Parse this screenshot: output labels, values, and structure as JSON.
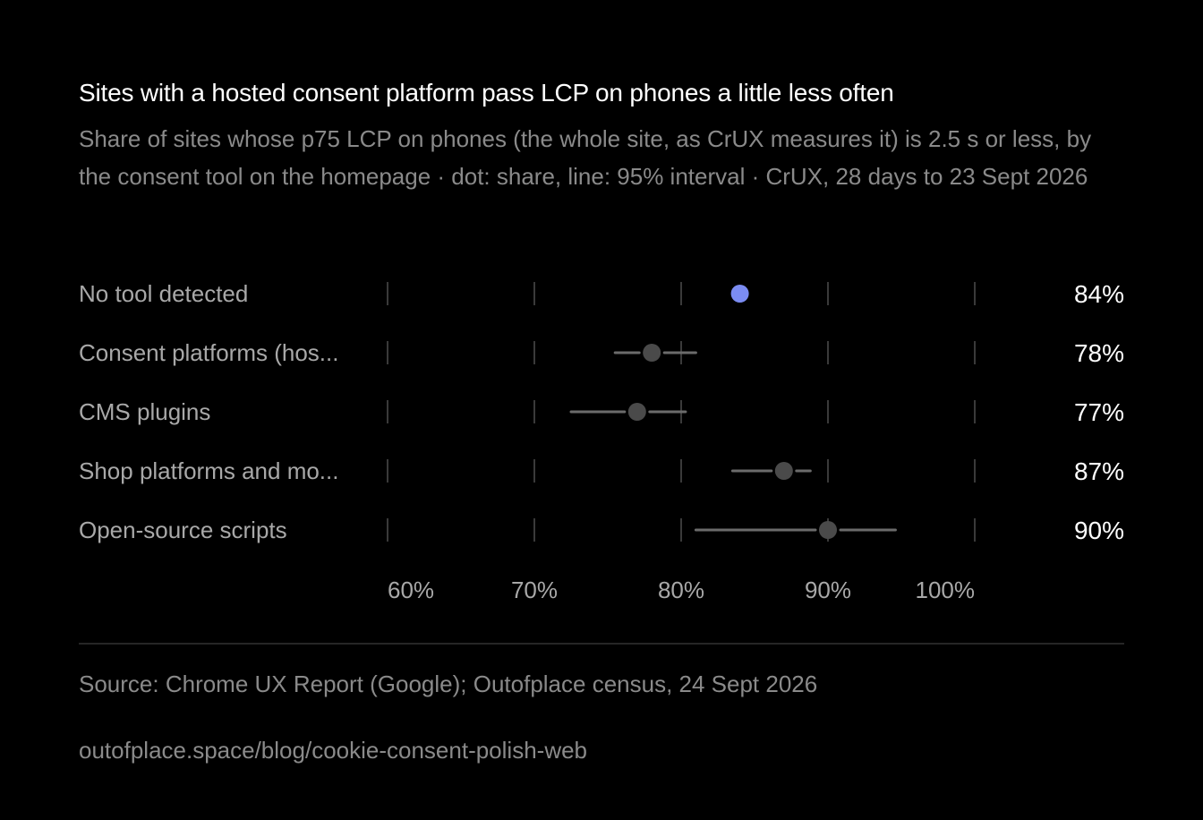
{
  "title": "Sites with a hosted consent platform pass LCP on phones a little less often",
  "subtitle": "Share of sites whose p75 LCP on phones (the whole site, as CrUX measures it) is 2.5 s or less, by the consent tool on the homepage · dot: share, line: 95% interval · CrUX, 28 days to 23 Sept 2026",
  "source": "Source: Chrome UX Report (Google); Outofplace census, 24 Sept 2026",
  "url": "outofplace.space/blog/cookie-consent-polish-web",
  "colors": {
    "background": "#000000",
    "highlight": "#7b8cf2",
    "dot": "#4a4a4a",
    "interval": "#6b6b6b",
    "label": "#a8a8a8",
    "value": "#ffffff",
    "grid": "#3a3a3a"
  },
  "chart_data": {
    "type": "dot-interval",
    "xlim": [
      60,
      100
    ],
    "ticks": [
      60,
      70,
      80,
      90,
      100
    ],
    "tick_labels": [
      "60%",
      "70%",
      "80%",
      "90%",
      "100%"
    ],
    "grid": true,
    "series": [
      {
        "label": "No tool detected",
        "value": 84,
        "value_label": "84%",
        "low": 83.8,
        "high": 84.5,
        "highlight": true
      },
      {
        "label": "Consent platforms (hos...",
        "value": 78,
        "value_label": "78%",
        "low": 75.5,
        "high": 81,
        "highlight": false
      },
      {
        "label": "CMS plugins",
        "value": 77,
        "value_label": "77%",
        "low": 72.5,
        "high": 80.3,
        "highlight": false
      },
      {
        "label": "Shop platforms and mo...",
        "value": 87,
        "value_label": "87%",
        "low": 83.5,
        "high": 88.8,
        "highlight": false
      },
      {
        "label": "Open-source scripts",
        "value": 90,
        "value_label": "90%",
        "low": 81,
        "high": 94.6,
        "highlight": false
      }
    ]
  }
}
